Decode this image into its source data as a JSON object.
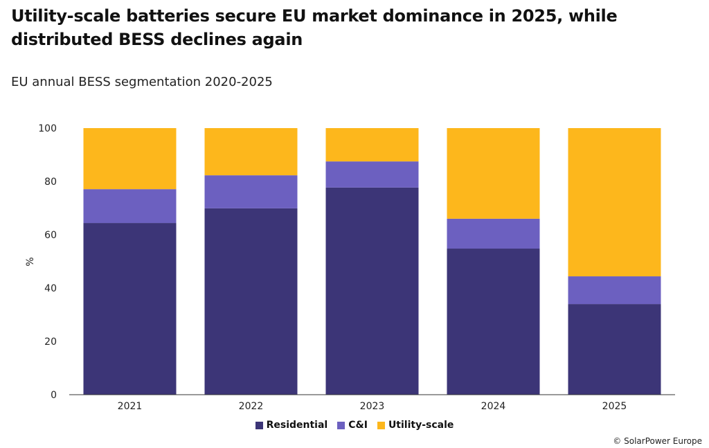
{
  "title": "Utility-scale batteries secure EU market dominance in 2025, while distributed BESS declines again",
  "subtitle": "EU annual BESS segmentation 2020-2025",
  "credit": "© SolarPower Europe",
  "chart_data": {
    "type": "bar",
    "stacked": true,
    "categories": [
      "2021",
      "2022",
      "2023",
      "2024",
      "2025"
    ],
    "series": [
      {
        "name": "Residential",
        "color": "#3C3577",
        "values": [
          64.4,
          69.9,
          77.7,
          54.8,
          34.0
        ]
      },
      {
        "name": "C&I",
        "color": "#6C60C0",
        "values": [
          12.7,
          12.4,
          9.8,
          11.2,
          10.4
        ]
      },
      {
        "name": "Utility-scale",
        "color": "#FDB71C",
        "values": [
          22.9,
          17.7,
          12.5,
          34.0,
          55.6
        ]
      }
    ],
    "ylabel": "%",
    "xlabel": "",
    "ylim": [
      0,
      100
    ],
    "yticks": [
      0,
      20,
      40,
      60,
      80,
      100
    ],
    "grid": false,
    "legend": "bottom"
  }
}
